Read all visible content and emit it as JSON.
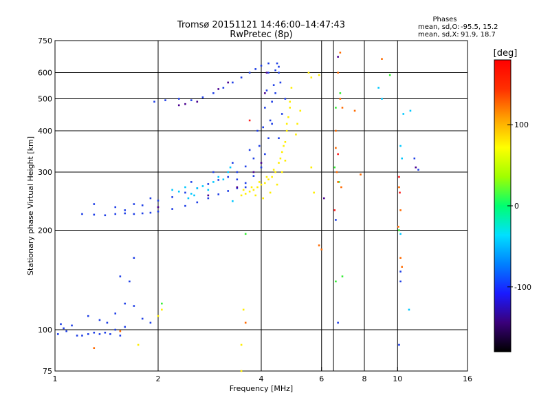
{
  "chart_data": {
    "type": "scatter",
    "title": "Tromsø 20151121 14:46:00–14:47:43",
    "subtitle": "RwPretec (8p)",
    "stats": {
      "header": "Phases",
      "o_label": "mean, sd,O:",
      "o_values": "-95.5, 15.2",
      "x_label": "mean, sd,X:",
      "x_values": "91.9, 18.7"
    },
    "xlabel": "Frequency [MHz]",
    "ylabel": "Stationary phase Virtual Height [km]",
    "x_scale": "log",
    "y_scale": "log",
    "xlim": [
      1,
      16
    ],
    "ylim": [
      75,
      750
    ],
    "xticks": [
      1,
      2,
      4,
      6,
      8,
      10,
      16
    ],
    "xtick_labels": [
      "1",
      "2",
      "4",
      "6",
      "8",
      "10",
      "16"
    ],
    "yticks": [
      75,
      100,
      200,
      300,
      400,
      500,
      600,
      750
    ],
    "ytick_labels": [
      "75",
      "100",
      "200",
      "300",
      "400",
      "500",
      "600",
      "750"
    ],
    "grid": true,
    "colorbar": {
      "unit": "[deg]",
      "range": [
        -180,
        180
      ],
      "ticks": [
        100,
        0,
        -100
      ],
      "tick_labels": [
        "100",
        "0",
        "-100"
      ],
      "colors": [
        "#000000",
        "#3a007a",
        "#1a1aff",
        "#0080ff",
        "#00e0ff",
        "#00ff70",
        "#a0ff00",
        "#ffff00",
        "#ffa000",
        "#ff3000",
        "#ff0000"
      ]
    },
    "series": [
      {
        "color": "#1f3fe6",
        "points": [
          [
            1.02,
            97
          ],
          [
            1.04,
            104
          ],
          [
            1.06,
            101
          ],
          [
            1.08,
            99
          ],
          [
            1.12,
            103
          ],
          [
            1.16,
            96
          ],
          [
            1.2,
            96
          ],
          [
            1.25,
            97
          ],
          [
            1.3,
            98
          ],
          [
            1.35,
            97
          ],
          [
            1.4,
            98
          ],
          [
            1.45,
            97
          ],
          [
            1.5,
            100
          ],
          [
            1.55,
            96
          ],
          [
            1.6,
            102
          ],
          [
            1.25,
            110
          ],
          [
            1.35,
            107
          ],
          [
            1.42,
            105
          ],
          [
            1.5,
            112
          ],
          [
            1.6,
            120
          ],
          [
            1.7,
            118
          ],
          [
            1.8,
            108
          ],
          [
            1.9,
            105
          ],
          [
            1.2,
            224
          ],
          [
            1.3,
            223
          ],
          [
            1.4,
            222
          ],
          [
            1.5,
            224
          ],
          [
            1.6,
            225
          ],
          [
            1.7,
            224
          ],
          [
            1.8,
            225
          ],
          [
            1.9,
            226
          ],
          [
            2.0,
            228
          ],
          [
            2.2,
            232
          ],
          [
            2.4,
            237
          ],
          [
            2.6,
            243
          ],
          [
            2.8,
            250
          ],
          [
            3.0,
            257
          ],
          [
            3.2,
            263
          ],
          [
            3.4,
            268
          ],
          [
            3.6,
            278
          ],
          [
            3.8,
            292
          ],
          [
            4.0,
            310
          ],
          [
            4.1,
            340
          ],
          [
            4.2,
            380
          ],
          [
            4.25,
            430
          ],
          [
            4.3,
            490
          ],
          [
            4.35,
            550
          ],
          [
            4.4,
            610
          ],
          [
            4.45,
            640
          ],
          [
            4.5,
            625
          ],
          [
            1.6,
            230
          ],
          [
            1.8,
            238
          ],
          [
            2.0,
            246
          ],
          [
            2.2,
            252
          ],
          [
            2.4,
            260
          ],
          [
            2.6,
            268
          ],
          [
            2.8,
            276
          ],
          [
            3.0,
            284
          ],
          [
            3.2,
            290
          ],
          [
            3.4,
            300
          ],
          [
            3.6,
            312
          ],
          [
            3.8,
            330
          ],
          [
            3.95,
            360
          ],
          [
            4.05,
            410
          ],
          [
            4.1,
            470
          ],
          [
            4.15,
            530
          ],
          [
            4.2,
            600
          ],
          [
            1.95,
            490
          ],
          [
            2.1,
            495
          ],
          [
            2.3,
            500
          ],
          [
            2.5,
            495
          ],
          [
            2.7,
            505
          ],
          [
            2.9,
            520
          ],
          [
            3.1,
            540
          ],
          [
            3.3,
            560
          ],
          [
            3.5,
            580
          ],
          [
            3.7,
            600
          ],
          [
            3.85,
            615
          ],
          [
            4.0,
            630
          ],
          [
            4.2,
            640
          ],
          [
            4.5,
            600
          ],
          [
            4.55,
            560
          ],
          [
            4.4,
            520
          ],
          [
            1.3,
            240
          ],
          [
            1.5,
            235
          ],
          [
            1.7,
            240
          ],
          [
            1.9,
            250
          ],
          [
            2.5,
            280
          ],
          [
            2.9,
            300
          ],
          [
            3.3,
            320
          ],
          [
            3.7,
            350
          ],
          [
            3.9,
            400
          ],
          [
            4.6,
            450
          ],
          [
            4.7,
            500
          ],
          [
            4.3,
            420
          ],
          [
            4.5,
            380
          ],
          [
            3.6,
            270
          ],
          [
            3.4,
            285
          ],
          [
            6.7,
            105
          ],
          [
            6.6,
            215
          ],
          [
            11.2,
            330
          ],
          [
            11.5,
            305
          ],
          [
            10.2,
            150
          ],
          [
            10.2,
            140
          ],
          [
            10.1,
            90
          ],
          [
            1.55,
            145
          ],
          [
            1.7,
            165
          ],
          [
            1.65,
            140
          ]
        ]
      },
      {
        "color": "#ffee00",
        "points": [
          [
            3.5,
            255
          ],
          [
            3.6,
            258
          ],
          [
            3.7,
            262
          ],
          [
            3.8,
            265
          ],
          [
            3.9,
            270
          ],
          [
            4.0,
            275
          ],
          [
            4.1,
            278
          ],
          [
            4.2,
            285
          ],
          [
            4.3,
            290
          ],
          [
            4.4,
            300
          ],
          [
            4.5,
            320
          ],
          [
            4.6,
            345
          ],
          [
            4.7,
            370
          ],
          [
            4.75,
            400
          ],
          [
            4.8,
            440
          ],
          [
            4.85,
            490
          ],
          [
            4.9,
            540
          ],
          [
            3.55,
            265
          ],
          [
            3.75,
            270
          ],
          [
            3.95,
            280
          ],
          [
            4.15,
            290
          ],
          [
            4.35,
            305
          ],
          [
            4.55,
            330
          ],
          [
            4.65,
            360
          ],
          [
            4.75,
            420
          ],
          [
            4.85,
            470
          ],
          [
            5.5,
            600
          ],
          [
            5.6,
            580
          ],
          [
            5.1,
            420
          ],
          [
            5.2,
            460
          ],
          [
            5.05,
            390
          ],
          [
            4.05,
            250
          ],
          [
            4.25,
            260
          ],
          [
            4.45,
            275
          ],
          [
            4.6,
            300
          ],
          [
            4.7,
            325
          ],
          [
            3.85,
            255
          ],
          [
            2.05,
            115
          ],
          [
            2.0,
            110
          ],
          [
            3.5,
            90
          ],
          [
            3.5,
            75
          ],
          [
            1.75,
            90
          ],
          [
            3.55,
            115
          ],
          [
            5.7,
            260
          ],
          [
            5.6,
            310
          ],
          [
            5.9,
            590
          ]
        ]
      },
      {
        "color": "#00c8ff",
        "points": [
          [
            2.2,
            265
          ],
          [
            2.3,
            262
          ],
          [
            2.4,
            270
          ],
          [
            2.5,
            258
          ],
          [
            2.6,
            268
          ],
          [
            2.7,
            272
          ],
          [
            2.8,
            265
          ],
          [
            2.9,
            280
          ],
          [
            3.0,
            290
          ],
          [
            3.1,
            285
          ],
          [
            3.2,
            300
          ],
          [
            2.45,
            250
          ],
          [
            2.55,
            255
          ],
          [
            9.0,
            500
          ],
          [
            10.3,
            330
          ],
          [
            10.2,
            360
          ],
          [
            10.4,
            450
          ],
          [
            10.8,
            115
          ],
          [
            10.2,
            195
          ],
          [
            10.9,
            460
          ],
          [
            8.8,
            540
          ],
          [
            3.3,
            245
          ],
          [
            3.25,
            310
          ]
        ]
      },
      {
        "color": "#33ee33",
        "points": [
          [
            2.05,
            120
          ],
          [
            3.6,
            195
          ],
          [
            6.6,
            140
          ],
          [
            6.9,
            145
          ],
          [
            6.6,
            470
          ],
          [
            6.8,
            520
          ],
          [
            6.55,
            310
          ],
          [
            6.75,
            280
          ],
          [
            9.5,
            590
          ],
          [
            10.1,
            200
          ]
        ]
      },
      {
        "color": "#ff6a00",
        "points": [
          [
            6.6,
            400
          ],
          [
            6.6,
            355
          ],
          [
            6.65,
            300
          ],
          [
            6.7,
            280
          ],
          [
            6.85,
            270
          ],
          [
            6.9,
            470
          ],
          [
            7.5,
            460
          ],
          [
            6.7,
            600
          ],
          [
            6.8,
            690
          ],
          [
            9.0,
            660
          ],
          [
            10.1,
            270
          ],
          [
            10.2,
            230
          ],
          [
            10.2,
            165
          ],
          [
            10.3,
            155
          ],
          [
            10.05,
            205
          ],
          [
            5.9,
            180
          ],
          [
            6.0,
            175
          ],
          [
            1.3,
            88
          ],
          [
            1.55,
            99
          ],
          [
            6.8,
            500
          ],
          [
            3.6,
            105
          ],
          [
            7.8,
            295
          ]
        ]
      },
      {
        "color": "#ff1a1a",
        "points": [
          [
            3.7,
            430
          ],
          [
            6.7,
            340
          ],
          [
            10.1,
            290
          ],
          [
            10.15,
            260
          ],
          [
            6.55,
            230
          ]
        ]
      },
      {
        "color": "#4a0090",
        "points": [
          [
            2.3,
            478
          ],
          [
            2.4,
            482
          ],
          [
            2.6,
            490
          ],
          [
            3.0,
            535
          ],
          [
            3.2,
            560
          ],
          [
            6.1,
            250
          ],
          [
            11.3,
            310
          ],
          [
            3.8,
            300
          ],
          [
            4.0,
            320
          ],
          [
            4.1,
            520
          ],
          [
            4.15,
            600
          ],
          [
            2.0,
            235
          ],
          [
            2.8,
            255
          ],
          [
            3.4,
            270
          ],
          [
            6.7,
            670
          ]
        ]
      }
    ]
  }
}
